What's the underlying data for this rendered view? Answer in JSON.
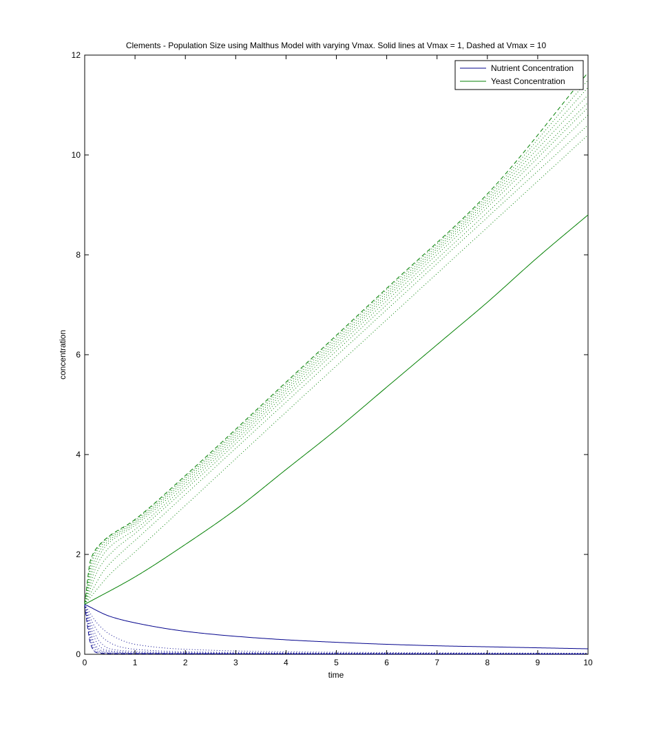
{
  "chart_data": {
    "type": "line",
    "title": "Clements - Population Size using Malthus Model with varying Vmax. Solid lines at Vmax = 1, Dashed at Vmax = 10",
    "xlabel": "time",
    "ylabel": "concentration",
    "xlim": [
      0,
      10
    ],
    "ylim": [
      0,
      12
    ],
    "xticks": [
      "0",
      "1",
      "2",
      "3",
      "4",
      "5",
      "6",
      "7",
      "8",
      "9",
      "10"
    ],
    "yticks": [
      "0",
      "2",
      "4",
      "6",
      "8",
      "10",
      "12"
    ],
    "grid": false,
    "legend": {
      "position": "top-right",
      "entries": [
        {
          "label": "Nutrient Concentration",
          "color": "#00008b"
        },
        {
          "label": "Yeast Concentration",
          "color": "#007f00"
        }
      ]
    },
    "series": [
      {
        "group": "nutrient",
        "vmax": 1,
        "style": "solid",
        "color": "#00008b",
        "x": [
          0,
          0.5,
          1,
          2,
          3,
          4,
          5,
          6,
          7,
          8,
          9,
          10
        ],
        "y": [
          1.0,
          0.76,
          0.63,
          0.46,
          0.36,
          0.29,
          0.24,
          0.2,
          0.17,
          0.15,
          0.13,
          0.11
        ]
      },
      {
        "group": "yeast",
        "vmax": 1,
        "style": "solid",
        "color": "#007f00",
        "x": [
          0,
          1,
          2,
          3,
          4,
          5,
          6,
          7,
          8,
          9,
          10
        ],
        "y": [
          1.0,
          1.55,
          2.2,
          2.9,
          3.7,
          4.5,
          5.35,
          6.2,
          7.05,
          7.95,
          8.8
        ]
      },
      {
        "group": "nutrient",
        "vmax": 2,
        "style": "dotted",
        "color": "#00008b",
        "x": [
          0,
          0.25,
          0.5,
          1,
          2,
          4,
          6,
          8,
          10
        ],
        "y": [
          1.0,
          0.62,
          0.4,
          0.2,
          0.1,
          0.05,
          0.035,
          0.027,
          0.022
        ]
      },
      {
        "group": "yeast",
        "vmax": 2,
        "style": "dotted",
        "color": "#007f00",
        "x": [
          0,
          0.5,
          1,
          2,
          4,
          6,
          8,
          10
        ],
        "y": [
          1.0,
          1.6,
          2.05,
          2.98,
          4.85,
          6.7,
          8.55,
          10.4
        ]
      },
      {
        "group": "nutrient",
        "vmax": 3,
        "style": "dotted",
        "color": "#00008b",
        "x": [
          0,
          0.2,
          0.4,
          0.7,
          1,
          2,
          4,
          6,
          8,
          10
        ],
        "y": [
          1.0,
          0.55,
          0.3,
          0.15,
          0.1,
          0.05,
          0.03,
          0.022,
          0.018,
          0.015
        ]
      },
      {
        "group": "yeast",
        "vmax": 3,
        "style": "dotted",
        "color": "#007f00",
        "x": [
          0,
          0.4,
          0.8,
          1,
          2,
          4,
          6,
          8,
          10
        ],
        "y": [
          1.0,
          1.7,
          2.1,
          2.28,
          3.2,
          5.05,
          6.9,
          8.75,
          10.6
        ]
      },
      {
        "group": "nutrient",
        "vmax": 4,
        "style": "dotted",
        "color": "#00008b",
        "x": [
          0,
          0.15,
          0.3,
          0.5,
          0.8,
          1.5,
          4,
          10
        ],
        "y": [
          1.0,
          0.55,
          0.25,
          0.11,
          0.07,
          0.04,
          0.02,
          0.012
        ]
      },
      {
        "group": "yeast",
        "vmax": 4,
        "style": "dotted",
        "color": "#007f00",
        "x": [
          0,
          0.3,
          0.6,
          1,
          2,
          4,
          6,
          8,
          10
        ],
        "y": [
          1.0,
          1.75,
          2.1,
          2.42,
          3.3,
          5.15,
          7.0,
          8.85,
          10.8
        ]
      },
      {
        "group": "nutrient",
        "vmax": 5,
        "style": "dotted",
        "color": "#00008b",
        "x": [
          0,
          0.12,
          0.25,
          0.4,
          0.7,
          1.2,
          4,
          10
        ],
        "y": [
          1.0,
          0.55,
          0.22,
          0.09,
          0.05,
          0.03,
          0.015,
          0.01
        ]
      },
      {
        "group": "yeast",
        "vmax": 5,
        "style": "dotted",
        "color": "#007f00",
        "x": [
          0,
          0.25,
          0.5,
          1,
          2,
          4,
          6,
          8,
          10
        ],
        "y": [
          1.0,
          1.8,
          2.15,
          2.5,
          3.37,
          5.22,
          7.08,
          8.95,
          10.95
        ]
      },
      {
        "group": "nutrient",
        "vmax": 6,
        "style": "dotted",
        "color": "#00008b",
        "x": [
          0,
          0.1,
          0.2,
          0.35,
          0.6,
          1,
          4,
          10
        ],
        "y": [
          1.0,
          0.55,
          0.2,
          0.07,
          0.04,
          0.025,
          0.012,
          0.008
        ]
      },
      {
        "group": "yeast",
        "vmax": 6,
        "style": "dotted",
        "color": "#007f00",
        "x": [
          0,
          0.2,
          0.45,
          1,
          2,
          4,
          6,
          8,
          10
        ],
        "y": [
          1.0,
          1.8,
          2.2,
          2.58,
          3.43,
          5.28,
          7.15,
          9.02,
          11.05
        ]
      },
      {
        "group": "nutrient",
        "vmax": 7,
        "style": "dotted",
        "color": "#00008b",
        "x": [
          0,
          0.08,
          0.18,
          0.3,
          0.5,
          1,
          4,
          10
        ],
        "y": [
          1.0,
          0.58,
          0.2,
          0.06,
          0.03,
          0.02,
          0.01,
          0.006
        ]
      },
      {
        "group": "yeast",
        "vmax": 7,
        "style": "dotted",
        "color": "#007f00",
        "x": [
          0,
          0.18,
          0.4,
          1,
          2,
          4,
          6,
          8,
          10
        ],
        "y": [
          1.0,
          1.85,
          2.2,
          2.62,
          3.48,
          5.33,
          7.2,
          9.08,
          11.2
        ]
      },
      {
        "group": "nutrient",
        "vmax": 8,
        "style": "dotted",
        "color": "#00008b",
        "x": [
          0,
          0.07,
          0.15,
          0.25,
          0.4,
          0.8,
          4,
          10
        ],
        "y": [
          1.0,
          0.58,
          0.2,
          0.06,
          0.025,
          0.015,
          0.008,
          0.005
        ]
      },
      {
        "group": "yeast",
        "vmax": 8,
        "style": "dotted",
        "color": "#007f00",
        "x": [
          0,
          0.16,
          0.35,
          1,
          2,
          4,
          6,
          8,
          10
        ],
        "y": [
          1.0,
          1.9,
          2.2,
          2.65,
          3.52,
          5.38,
          7.25,
          9.13,
          11.35
        ]
      },
      {
        "group": "nutrient",
        "vmax": 9,
        "style": "dotted",
        "color": "#00008b",
        "x": [
          0,
          0.06,
          0.13,
          0.22,
          0.35,
          0.7,
          4,
          10
        ],
        "y": [
          1.0,
          0.6,
          0.2,
          0.05,
          0.02,
          0.012,
          0.007,
          0.004
        ]
      },
      {
        "group": "yeast",
        "vmax": 9,
        "style": "dotted",
        "color": "#007f00",
        "x": [
          0,
          0.14,
          0.32,
          1,
          2,
          4,
          6,
          8,
          10
        ],
        "y": [
          1.0,
          1.9,
          2.2,
          2.68,
          3.55,
          5.42,
          7.3,
          9.18,
          11.5
        ]
      },
      {
        "group": "nutrient",
        "vmax": 10,
        "style": "dashed",
        "color": "#00008b",
        "x": [
          0,
          0.05,
          0.12,
          0.2,
          0.3,
          0.6,
          4,
          10
        ],
        "y": [
          1.0,
          0.6,
          0.2,
          0.05,
          0.02,
          0.01,
          0.006,
          0.004
        ]
      },
      {
        "group": "yeast",
        "vmax": 10,
        "style": "dashed",
        "color": "#007f00",
        "x": [
          0,
          0.12,
          0.3,
          1,
          2,
          4,
          6,
          8,
          10
        ],
        "y": [
          1.0,
          1.9,
          2.2,
          2.7,
          3.58,
          5.45,
          7.33,
          9.22,
          11.65
        ]
      }
    ]
  }
}
